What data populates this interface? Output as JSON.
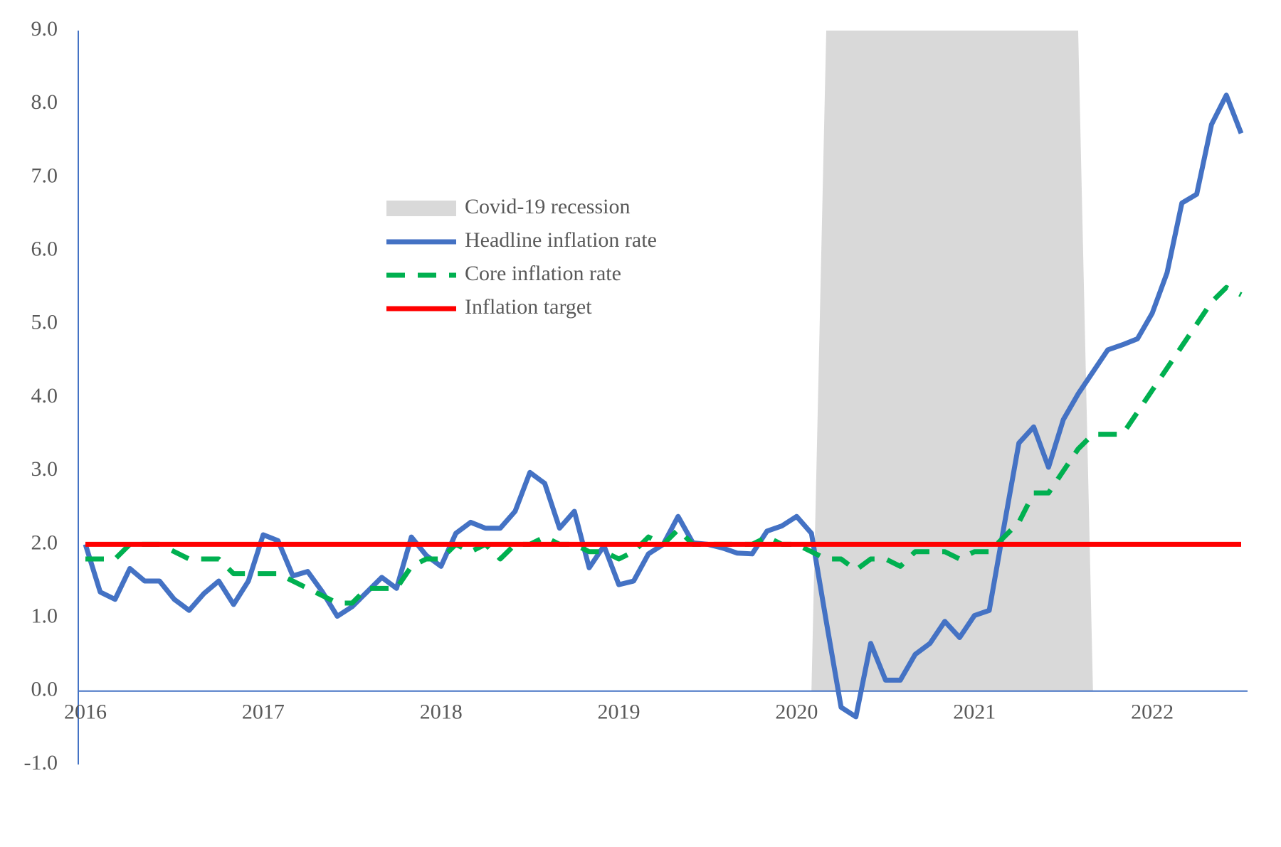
{
  "chart_data": {
    "type": "line",
    "categories": [
      "2016",
      null,
      null,
      null,
      null,
      null,
      null,
      null,
      null,
      null,
      null,
      null,
      "2017",
      null,
      null,
      null,
      null,
      null,
      null,
      null,
      null,
      null,
      null,
      null,
      "2018",
      null,
      null,
      null,
      null,
      null,
      null,
      null,
      null,
      null,
      null,
      null,
      "2019",
      null,
      null,
      null,
      null,
      null,
      null,
      null,
      null,
      null,
      null,
      null,
      "2020",
      null,
      null,
      null,
      null,
      null,
      null,
      null,
      null,
      null,
      null,
      null,
      "2021",
      null,
      null,
      null,
      null,
      null,
      null,
      null,
      null,
      null,
      null,
      null,
      "2022",
      null,
      null,
      null,
      null,
      null,
      null
    ],
    "series": [
      {
        "name": "Covid-19 recession",
        "color": "#d9d9d9",
        "style": "area",
        "values": [
          0,
          0,
          0,
          0,
          0,
          0,
          0,
          0,
          0,
          0,
          0,
          0,
          0,
          0,
          0,
          0,
          0,
          0,
          0,
          0,
          0,
          0,
          0,
          0,
          0,
          0,
          0,
          0,
          0,
          0,
          0,
          0,
          0,
          0,
          0,
          0,
          0,
          0,
          0,
          0,
          0,
          0,
          0,
          0,
          0,
          0,
          0,
          0,
          0,
          0,
          9,
          9,
          9,
          9,
          9,
          9,
          9,
          9,
          9,
          9,
          9,
          9,
          9,
          9,
          9,
          9,
          9,
          9,
          0,
          0,
          0,
          0,
          0,
          0,
          0,
          0,
          0,
          0,
          0
        ]
      },
      {
        "name": "Headline inflation rate",
        "color": "#4472c4",
        "style": "solid",
        "values": [
          2.0,
          1.35,
          1.25,
          1.67,
          1.5,
          1.5,
          1.25,
          1.1,
          1.33,
          1.5,
          1.18,
          1.5,
          2.13,
          2.05,
          1.57,
          1.63,
          1.35,
          1.02,
          1.15,
          1.35,
          1.55,
          1.4,
          2.1,
          1.85,
          1.7,
          2.15,
          2.3,
          2.22,
          2.22,
          2.45,
          2.98,
          2.83,
          2.22,
          2.45,
          1.68,
          1.98,
          1.45,
          1.5,
          1.87,
          2.0,
          2.38,
          2.02,
          2.0,
          1.95,
          1.88,
          1.87,
          2.18,
          2.25,
          2.38,
          2.15,
          0.95,
          -0.22,
          -0.35,
          0.65,
          0.15,
          0.15,
          0.5,
          0.65,
          0.95,
          0.73,
          1.03,
          1.1,
          2.25,
          3.38,
          3.6,
          3.05,
          3.7,
          4.05,
          4.35,
          4.65,
          4.72,
          4.8,
          5.15,
          5.7,
          6.65,
          6.77,
          7.72,
          8.12,
          7.6
        ]
      },
      {
        "name": "Core inflation rate",
        "color": "#00b050",
        "style": "dashed",
        "values": [
          1.8,
          1.8,
          1.8,
          2.0,
          2.0,
          2.0,
          1.9,
          1.8,
          1.8,
          1.8,
          1.6,
          1.6,
          1.6,
          1.6,
          1.5,
          1.4,
          1.3,
          1.2,
          1.2,
          1.4,
          1.4,
          1.4,
          1.7,
          1.8,
          1.8,
          2.0,
          1.9,
          2.0,
          1.8,
          2.0,
          2.0,
          2.1,
          2.0,
          2.0,
          1.9,
          1.9,
          1.8,
          1.9,
          2.1,
          2.0,
          2.2,
          2.0,
          2.0,
          2.0,
          2.0,
          2.0,
          2.1,
          2.0,
          2.0,
          1.9,
          1.8,
          1.8,
          1.65,
          1.8,
          1.8,
          1.7,
          1.9,
          1.9,
          1.9,
          1.8,
          1.9,
          1.9,
          2.1,
          2.3,
          2.7,
          2.7,
          3.0,
          3.3,
          3.5,
          3.5,
          3.5,
          3.8,
          4.1,
          4.4,
          4.7,
          5.0,
          5.3,
          5.5,
          5.4
        ]
      },
      {
        "name": "Inflation target",
        "color": "#ff0000",
        "style": "solid",
        "values": [
          2,
          2,
          2,
          2,
          2,
          2,
          2,
          2,
          2,
          2,
          2,
          2,
          2,
          2,
          2,
          2,
          2,
          2,
          2,
          2,
          2,
          2,
          2,
          2,
          2,
          2,
          2,
          2,
          2,
          2,
          2,
          2,
          2,
          2,
          2,
          2,
          2,
          2,
          2,
          2,
          2,
          2,
          2,
          2,
          2,
          2,
          2,
          2,
          2,
          2,
          2,
          2,
          2,
          2,
          2,
          2,
          2,
          2,
          2,
          2,
          2,
          2,
          2,
          2,
          2,
          2,
          2,
          2,
          2,
          2,
          2,
          2,
          2,
          2,
          2,
          2,
          2,
          2,
          2
        ]
      }
    ],
    "ylim": [
      -1,
      9
    ],
    "yticks": [
      {
        "value": -1,
        "label": "-1.0"
      },
      {
        "value": 0,
        "label": "0.0"
      },
      {
        "value": 1,
        "label": "1.0"
      },
      {
        "value": 2,
        "label": "2.0"
      },
      {
        "value": 3,
        "label": "3.0"
      },
      {
        "value": 4,
        "label": "4.0"
      },
      {
        "value": 5,
        "label": "5.0"
      },
      {
        "value": 6,
        "label": "6.0"
      },
      {
        "value": 7,
        "label": "7.0"
      },
      {
        "value": 8,
        "label": "8.0"
      },
      {
        "value": 9,
        "label": "9.0"
      }
    ],
    "grid": false,
    "axis_color": "#4472c4",
    "legend": "upper center"
  }
}
